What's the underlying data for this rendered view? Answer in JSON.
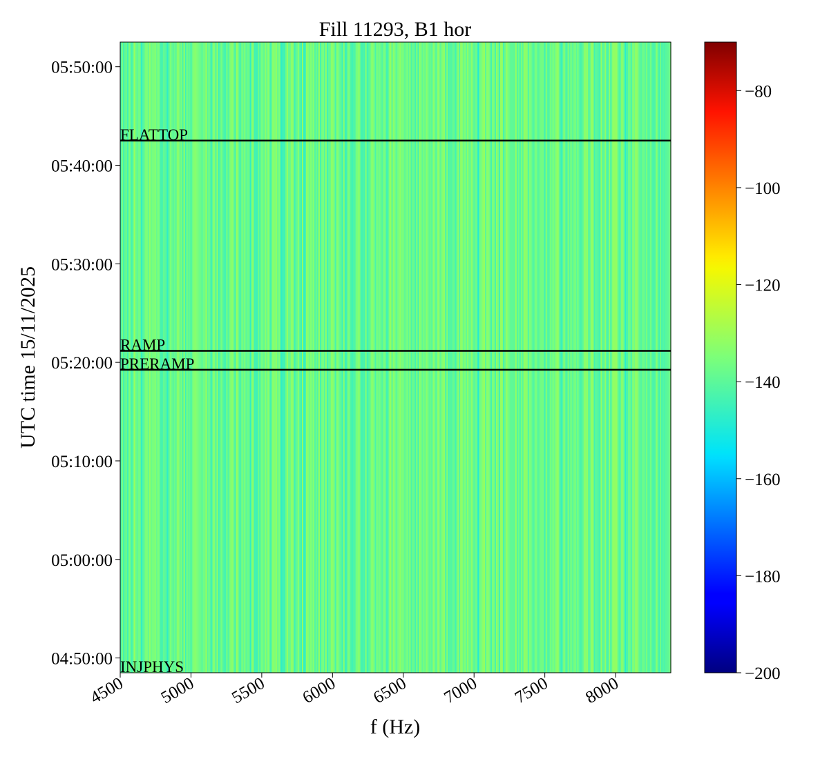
{
  "chart_data": {
    "type": "heatmap",
    "title": "Fill 11293, B1 hor",
    "xlabel": "f (Hz)",
    "ylabel": "UTC time 15/11/2025",
    "xlim": [
      4500,
      8390
    ],
    "ylim": [
      "04:48:30",
      "05:52:30"
    ],
    "x_ticks": [
      4500,
      5000,
      5500,
      6000,
      6500,
      7000,
      7500,
      8000
    ],
    "x_tick_labels": [
      "4500",
      "5000",
      "5500",
      "6000",
      "6500",
      "7000",
      "7500",
      "8000"
    ],
    "y_ticks": [
      "04:50:00",
      "05:00:00",
      "05:10:00",
      "05:20:00",
      "05:30:00",
      "05:40:00",
      "05:50:00"
    ],
    "y_tick_labels": [
      "04:50:00",
      "05:00:00",
      "05:10:00",
      "05:20:00",
      "05:30:00",
      "05:40:00",
      "05:50:00"
    ],
    "colormap": "jet",
    "colorbar": {
      "range": [
        -200,
        -70
      ],
      "ticks": [
        -200,
        -180,
        -160,
        -140,
        -120,
        -100,
        -80
      ],
      "tick_labels": [
        "−200",
        "−180",
        "−160",
        "−140",
        "−120",
        "−100",
        "−80"
      ]
    },
    "typical_value_range": [
      -145,
      -131
    ],
    "phase_markers": [
      {
        "label": "FLATTOP",
        "time": "05:42:30"
      },
      {
        "label": "RAMP",
        "time": "05:21:10"
      },
      {
        "label": "PRERAMP",
        "time": "05:19:15"
      },
      {
        "label": "INJPHYS",
        "time": "04:48:30"
      }
    ],
    "highlight_lines": [
      {
        "f": 4650,
        "value": -147
      },
      {
        "f": 4835,
        "value": -147
      },
      {
        "f": 5420,
        "value": -147
      },
      {
        "f": 5640,
        "value": -147
      },
      {
        "f": 5800,
        "value": -147
      },
      {
        "f": 7030,
        "value": -149
      },
      {
        "f": 7620,
        "value": -146
      },
      {
        "f": 8070,
        "value": -148
      }
    ]
  },
  "colors": {
    "marker_line": "#000000",
    "frame": "#000000"
  }
}
